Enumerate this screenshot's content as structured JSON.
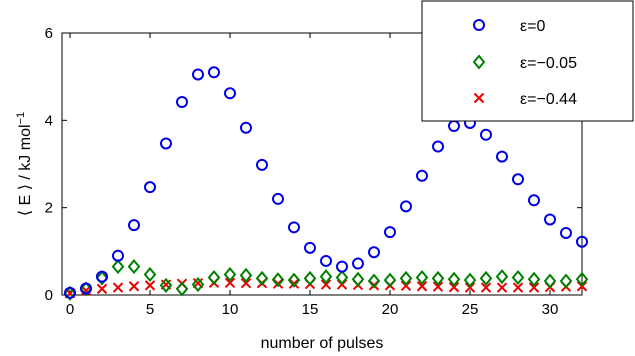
{
  "chart_data": {
    "type": "scatter",
    "title": "",
    "xlabel": "number of pulses",
    "ylabel": "⟨ E ⟩ / kJ mol",
    "ylabel_sup": "−1",
    "xlim": [
      -0.5,
      32
    ],
    "ylim": [
      0,
      6
    ],
    "xticks": [
      0,
      5,
      10,
      15,
      20,
      25,
      30
    ],
    "yticks": [
      0,
      2,
      4,
      6
    ],
    "xtick_labels": [
      "0",
      "5",
      "10",
      "15",
      "20",
      "25",
      "30"
    ],
    "ytick_labels": [
      "0",
      "2",
      "4",
      "6"
    ],
    "grid": false,
    "legend_position": "top-right",
    "series": [
      {
        "name": "ε=0",
        "marker": "circle",
        "color": "#0000ee",
        "x": [
          0,
          1,
          2,
          3,
          4,
          5,
          6,
          7,
          8,
          9,
          10,
          11,
          12,
          13,
          14,
          15,
          16,
          17,
          18,
          19,
          20,
          21,
          22,
          23,
          24,
          25,
          26,
          27,
          28,
          29,
          30,
          31,
          32
        ],
        "y": [
          0.05,
          0.15,
          0.42,
          0.9,
          1.6,
          2.47,
          3.47,
          4.42,
          5.05,
          5.1,
          4.62,
          3.83,
          2.98,
          2.2,
          1.55,
          1.08,
          0.78,
          0.65,
          0.72,
          0.98,
          1.44,
          2.03,
          2.73,
          3.4,
          3.87,
          3.94,
          3.67,
          3.17,
          2.65,
          2.17,
          1.73,
          1.42,
          1.22
        ]
      },
      {
        "name": "ε=−0.05",
        "marker": "diamond",
        "color": "#008000",
        "x": [
          0,
          1,
          2,
          3,
          4,
          5,
          6,
          7,
          8,
          9,
          10,
          11,
          12,
          13,
          14,
          15,
          16,
          17,
          18,
          19,
          20,
          21,
          22,
          23,
          24,
          25,
          26,
          27,
          28,
          29,
          30,
          31,
          32
        ],
        "y": [
          0.04,
          0.14,
          0.39,
          0.65,
          0.65,
          0.47,
          0.22,
          0.14,
          0.24,
          0.4,
          0.47,
          0.45,
          0.38,
          0.35,
          0.34,
          0.38,
          0.42,
          0.4,
          0.36,
          0.32,
          0.34,
          0.38,
          0.4,
          0.38,
          0.36,
          0.34,
          0.38,
          0.42,
          0.4,
          0.36,
          0.32,
          0.32,
          0.36
        ]
      },
      {
        "name": "ε=−0.44",
        "marker": "x",
        "color": "#ee0000",
        "x": [
          0,
          1,
          2,
          3,
          4,
          5,
          6,
          7,
          8,
          9,
          10,
          11,
          12,
          13,
          14,
          15,
          16,
          17,
          18,
          19,
          20,
          21,
          22,
          23,
          24,
          25,
          26,
          27,
          28,
          29,
          30,
          31,
          32
        ],
        "y": [
          0.04,
          0.1,
          0.14,
          0.17,
          0.2,
          0.22,
          0.24,
          0.26,
          0.27,
          0.28,
          0.28,
          0.27,
          0.27,
          0.26,
          0.26,
          0.25,
          0.24,
          0.24,
          0.23,
          0.22,
          0.22,
          0.21,
          0.2,
          0.19,
          0.18,
          0.17,
          0.17,
          0.17,
          0.17,
          0.17,
          0.18,
          0.19,
          0.2
        ]
      }
    ]
  }
}
